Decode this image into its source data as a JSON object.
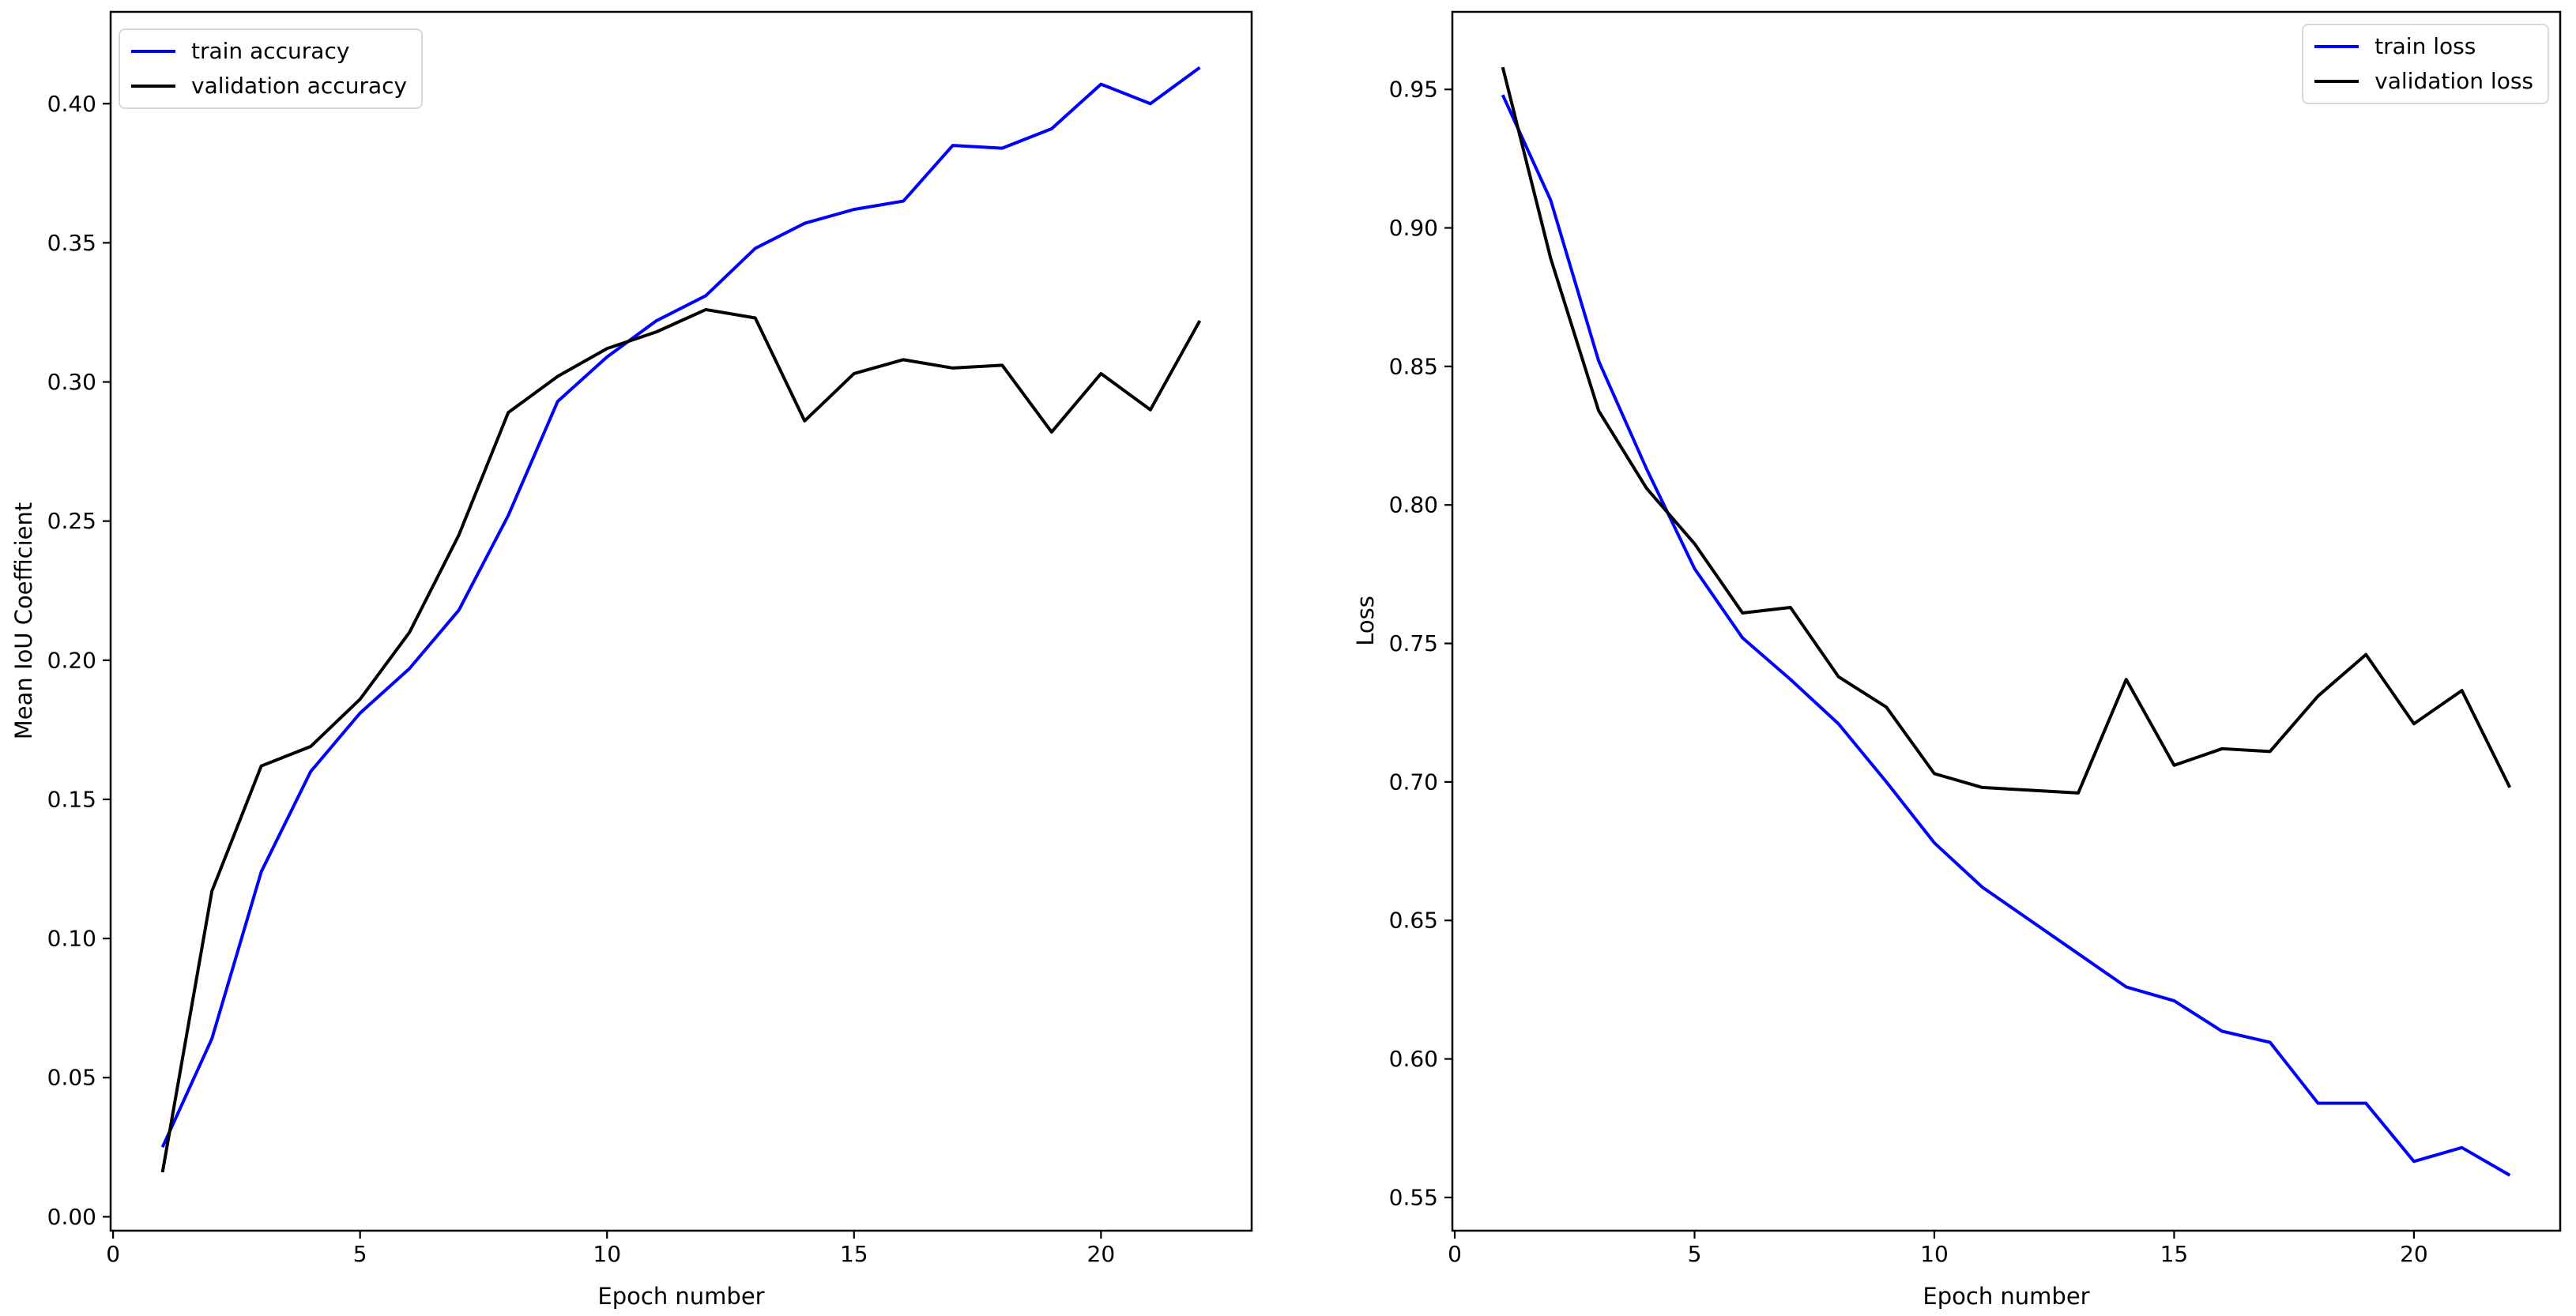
{
  "figure": {
    "background": "#ffffff",
    "text_color": "#000000",
    "axis_color": "#000000"
  },
  "chart_data": [
    {
      "type": "line",
      "name": "accuracy",
      "title": "",
      "xlabel": "Epoch number",
      "ylabel": "Mean IoU Coefficient",
      "grid": false,
      "legend_position": "upper-left",
      "xlim": [
        -0.05,
        23.05
      ],
      "ylim": [
        -0.005,
        0.433
      ],
      "x_ticks": [
        0,
        5,
        10,
        15,
        20
      ],
      "x_tick_labels": [
        "0",
        "5",
        "10",
        "15",
        "20"
      ],
      "y_ticks": [
        0.0,
        0.05,
        0.1,
        0.15,
        0.2,
        0.25,
        0.3,
        0.35,
        0.4
      ],
      "y_tick_labels": [
        "0.00",
        "0.05",
        "0.10",
        "0.15",
        "0.20",
        "0.25",
        "0.30",
        "0.35",
        "0.40"
      ],
      "x": [
        1,
        2,
        3,
        4,
        5,
        6,
        7,
        8,
        9,
        10,
        11,
        12,
        13,
        14,
        15,
        16,
        17,
        18,
        19,
        20,
        21,
        22
      ],
      "series": [
        {
          "name": "train accuracy",
          "color": "#0000ff",
          "values": [
            0.025,
            0.064,
            0.124,
            0.16,
            0.181,
            0.197,
            0.218,
            0.252,
            0.293,
            0.309,
            0.322,
            0.331,
            0.348,
            0.357,
            0.362,
            0.365,
            0.385,
            0.384,
            0.391,
            0.407,
            0.4,
            0.413
          ]
        },
        {
          "name": "validation accuracy",
          "color": "#000000",
          "values": [
            0.016,
            0.117,
            0.162,
            0.169,
            0.186,
            0.21,
            0.245,
            0.289,
            0.302,
            0.312,
            0.318,
            0.326,
            0.323,
            0.286,
            0.303,
            0.308,
            0.305,
            0.306,
            0.282,
            0.303,
            0.29,
            0.322
          ]
        }
      ]
    },
    {
      "type": "line",
      "name": "loss",
      "title": "",
      "xlabel": "Epoch number",
      "ylabel": "Loss",
      "grid": false,
      "legend_position": "upper-right",
      "xlim": [
        -0.05,
        23.05
      ],
      "ylim": [
        0.538,
        0.978
      ],
      "x_ticks": [
        0,
        5,
        10,
        15,
        20
      ],
      "x_tick_labels": [
        "0",
        "5",
        "10",
        "15",
        "20"
      ],
      "y_ticks": [
        0.55,
        0.6,
        0.65,
        0.7,
        0.75,
        0.8,
        0.85,
        0.9,
        0.95
      ],
      "y_tick_labels": [
        "0.55",
        "0.60",
        "0.65",
        "0.70",
        "0.75",
        "0.80",
        "0.85",
        "0.90",
        "0.95"
      ],
      "x": [
        1,
        2,
        3,
        4,
        5,
        6,
        7,
        8,
        9,
        10,
        11,
        12,
        13,
        14,
        15,
        16,
        17,
        18,
        19,
        20,
        21,
        22
      ],
      "series": [
        {
          "name": "train loss",
          "color": "#0000ff",
          "values": [
            0.948,
            0.91,
            0.852,
            0.813,
            0.777,
            0.752,
            0.737,
            0.721,
            0.7,
            0.678,
            0.662,
            0.65,
            0.638,
            0.626,
            0.621,
            0.61,
            0.606,
            0.584,
            0.584,
            0.563,
            0.568,
            0.558
          ]
        },
        {
          "name": "validation loss",
          "color": "#000000",
          "values": [
            0.958,
            0.889,
            0.834,
            0.806,
            0.786,
            0.761,
            0.763,
            0.738,
            0.727,
            0.703,
            0.698,
            0.697,
            0.696,
            0.737,
            0.706,
            0.712,
            0.711,
            0.731,
            0.746,
            0.721,
            0.733,
            0.698
          ]
        }
      ]
    }
  ]
}
